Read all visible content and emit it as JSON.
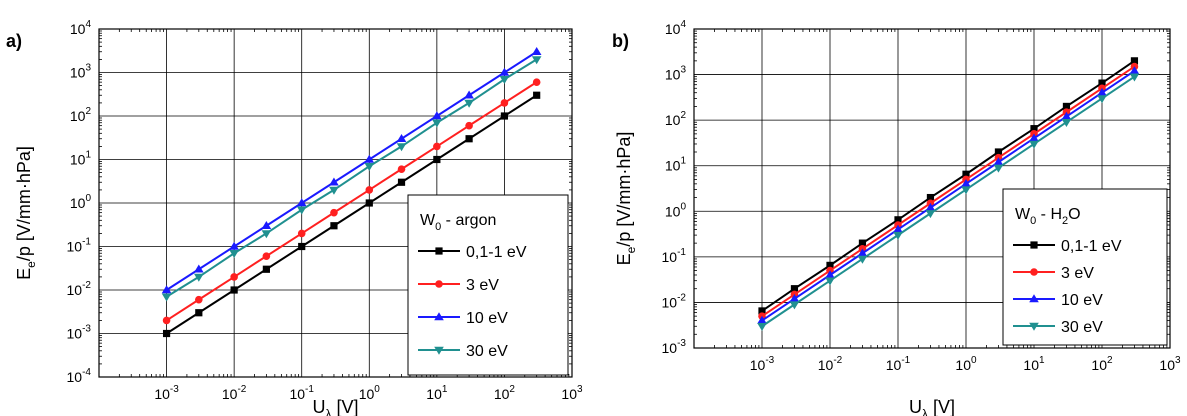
{
  "chart_data": [
    {
      "type": "line",
      "panel_label": "a)",
      "xlabel": "U",
      "xlabel_sub": "λ",
      "xlabel_unit": "[V]",
      "ylabel": "E",
      "ylabel_sub": "e",
      "ylabel_unit": "/p [V/mm·hPa]",
      "x_log": true,
      "y_log": true,
      "xlim_exp": [
        -4,
        3
      ],
      "ylim_exp": [
        -4,
        4
      ],
      "x_ticks": [
        {
          "base": "10",
          "exp": "-3"
        },
        {
          "base": "10",
          "exp": "-2"
        },
        {
          "base": "10",
          "exp": "-1"
        },
        {
          "base": "10",
          "exp": "0"
        },
        {
          "base": "10",
          "exp": "1"
        },
        {
          "base": "10",
          "exp": "2"
        },
        {
          "base": "10",
          "exp": "3"
        }
      ],
      "y_ticks": [
        {
          "base": "10",
          "exp": "-4"
        },
        {
          "base": "10",
          "exp": "-3"
        },
        {
          "base": "10",
          "exp": "-2"
        },
        {
          "base": "10",
          "exp": "-1"
        },
        {
          "base": "10",
          "exp": "0"
        },
        {
          "base": "10",
          "exp": "1"
        },
        {
          "base": "10",
          "exp": "2"
        },
        {
          "base": "10",
          "exp": "3"
        },
        {
          "base": "10",
          "exp": "4"
        }
      ],
      "grid": true,
      "legend_title": {
        "main": "W",
        "sub": "0",
        "rest": " - argon"
      },
      "legend_position": "lower-right",
      "x": [
        0.001,
        0.003,
        0.01,
        0.03,
        0.1,
        0.3,
        1,
        3,
        10,
        30,
        100,
        300
      ],
      "series": [
        {
          "name": "0,1-1 eV",
          "color": "#000000",
          "marker": "square",
          "values": [
            0.001,
            0.003,
            0.01,
            0.03,
            0.1,
            0.3,
            1,
            3,
            10,
            30,
            100,
            300
          ]
        },
        {
          "name": "3 eV",
          "color": "#ff2020",
          "marker": "circle",
          "values": [
            0.002,
            0.006,
            0.02,
            0.06,
            0.2,
            0.6,
            2,
            6,
            20,
            60,
            200,
            600
          ]
        },
        {
          "name": "10 eV",
          "color": "#1a1aff",
          "marker": "triangle-up",
          "values": [
            0.01,
            0.03,
            0.1,
            0.3,
            1,
            3,
            10,
            30,
            100,
            300,
            1000,
            3000
          ]
        },
        {
          "name": "30 eV",
          "color": "#209090",
          "marker": "triangle-down",
          "values": [
            0.007,
            0.02,
            0.07,
            0.2,
            0.7,
            2,
            7,
            20,
            70,
            200,
            700,
            2000
          ]
        }
      ]
    },
    {
      "type": "line",
      "panel_label": "b)",
      "xlabel": "U",
      "xlabel_sub": "λ",
      "xlabel_unit": "[V]",
      "ylabel": "E",
      "ylabel_sub": "e",
      "ylabel_unit": "/p [V/mm·hPa]",
      "x_log": true,
      "y_log": true,
      "xlim_exp": [
        -4,
        3
      ],
      "ylim_exp": [
        -3,
        4
      ],
      "x_ticks": [
        {
          "base": "10",
          "exp": "-3"
        },
        {
          "base": "10",
          "exp": "-2"
        },
        {
          "base": "10",
          "exp": "-1"
        },
        {
          "base": "10",
          "exp": "0"
        },
        {
          "base": "10",
          "exp": "1"
        },
        {
          "base": "10",
          "exp": "2"
        },
        {
          "base": "10",
          "exp": "3"
        }
      ],
      "y_ticks": [
        {
          "base": "10",
          "exp": "-3"
        },
        {
          "base": "10",
          "exp": "-2"
        },
        {
          "base": "10",
          "exp": "-1"
        },
        {
          "base": "10",
          "exp": "0"
        },
        {
          "base": "10",
          "exp": "1"
        },
        {
          "base": "10",
          "exp": "2"
        },
        {
          "base": "10",
          "exp": "3"
        },
        {
          "base": "10",
          "exp": "4"
        }
      ],
      "grid": true,
      "legend_title": {
        "main": "W",
        "sub": "0",
        "rest": " - H",
        "sub2": "2",
        "rest2": "O"
      },
      "legend_position": "lower-right",
      "x": [
        0.001,
        0.003,
        0.01,
        0.03,
        0.1,
        0.3,
        1,
        3,
        10,
        30,
        100,
        300
      ],
      "series": [
        {
          "name": "0,1-1 eV",
          "color": "#000000",
          "marker": "square",
          "values": [
            0.0065,
            0.02,
            0.065,
            0.2,
            0.65,
            2,
            6.5,
            20,
            65,
            200,
            650,
            2000
          ]
        },
        {
          "name": "3 eV",
          "color": "#ff2020",
          "marker": "circle",
          "values": [
            0.005,
            0.015,
            0.05,
            0.15,
            0.5,
            1.5,
            5,
            15,
            50,
            150,
            500,
            1500
          ]
        },
        {
          "name": "10 eV",
          "color": "#1a1aff",
          "marker": "triangle-up",
          "values": [
            0.004,
            0.012,
            0.04,
            0.12,
            0.4,
            1.2,
            4,
            12,
            40,
            120,
            400,
            1200
          ]
        },
        {
          "name": "30 eV",
          "color": "#209090",
          "marker": "triangle-down",
          "values": [
            0.003,
            0.009,
            0.03,
            0.09,
            0.3,
            0.9,
            3,
            9,
            30,
            90,
            300,
            900
          ]
        }
      ]
    }
  ]
}
